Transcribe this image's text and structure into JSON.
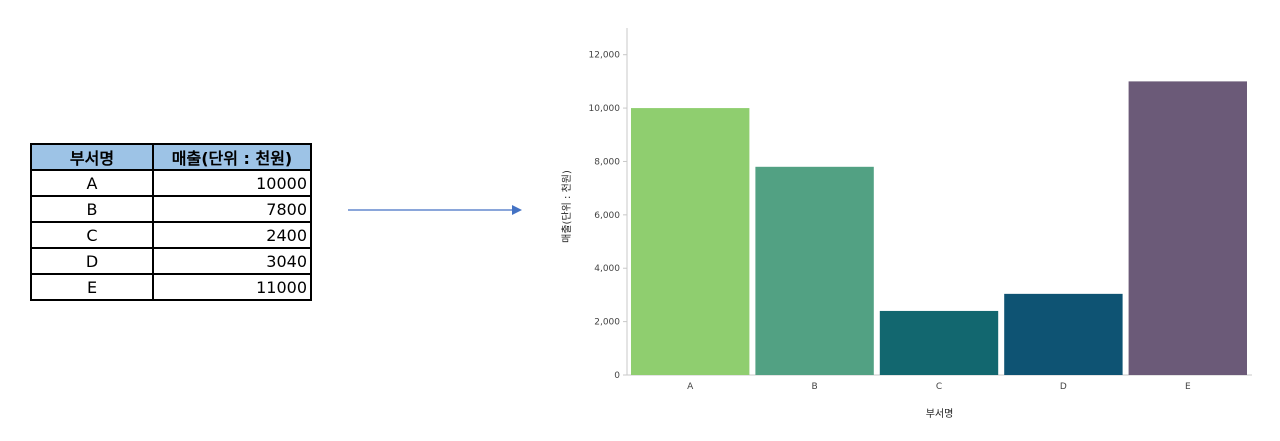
{
  "table": {
    "headers": [
      "부서명",
      "매출(단위 : 천원)"
    ],
    "rows": [
      {
        "dept": "A",
        "sales": "10000"
      },
      {
        "dept": "B",
        "sales": "7800"
      },
      {
        "dept": "C",
        "sales": "2400"
      },
      {
        "dept": "D",
        "sales": "3040"
      },
      {
        "dept": "E",
        "sales": "11000"
      }
    ]
  },
  "arrow_color": "#4472c4",
  "chart_data": {
    "type": "bar",
    "categories": [
      "A",
      "B",
      "C",
      "D",
      "E"
    ],
    "values": [
      10000,
      7800,
      2400,
      3040,
      11000
    ],
    "colors": [
      "#8fce6f",
      "#52a183",
      "#12676f",
      "#0e5373",
      "#6b5a78"
    ],
    "xlabel": "부서명",
    "ylabel": "매출(단위 : 천원)",
    "ylim": [
      0,
      13000
    ],
    "yticks": [
      0,
      2000,
      4000,
      6000,
      8000,
      10000,
      12000
    ],
    "ytick_labels": [
      "0",
      "2,000",
      "4,000",
      "6,000",
      "8,000",
      "10,000",
      "12,000"
    ],
    "grid": false,
    "legend": "none"
  }
}
